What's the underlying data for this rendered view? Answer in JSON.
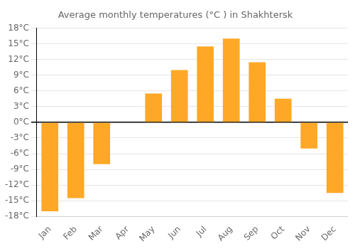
{
  "chart_data": {
    "type": "bar",
    "title": "Average monthly temperatures (°C ) in Shakhtersk",
    "categories": [
      "Jan",
      "Feb",
      "Mar",
      "Apr",
      "May",
      "Jun",
      "Jul",
      "Aug",
      "Sep",
      "Oct",
      "Nov",
      "Dec"
    ],
    "values": [
      -17.0,
      -14.5,
      -8.0,
      0.0,
      5.5,
      10.0,
      14.5,
      16.0,
      11.5,
      4.5,
      -5.0,
      -13.5
    ],
    "color": "#FFA827",
    "ylim": [
      -18,
      18
    ],
    "yticks": [
      {
        "value": -18,
        "label": "-18°C"
      },
      {
        "value": -15,
        "label": "-15°C"
      },
      {
        "value": -12,
        "label": "-12°C"
      },
      {
        "value": -9,
        "label": "-9°C"
      },
      {
        "value": -6,
        "label": "-6°C"
      },
      {
        "value": -3,
        "label": "-3°C"
      },
      {
        "value": 0,
        "label": "0°C"
      },
      {
        "value": 3,
        "label": "3°C"
      },
      {
        "value": 6,
        "label": "6°C"
      },
      {
        "value": 9,
        "label": "9°C"
      },
      {
        "value": 12,
        "label": "12°C"
      },
      {
        "value": 15,
        "label": "15°C"
      },
      {
        "value": 18,
        "label": "18°C"
      }
    ],
    "grid": true
  }
}
